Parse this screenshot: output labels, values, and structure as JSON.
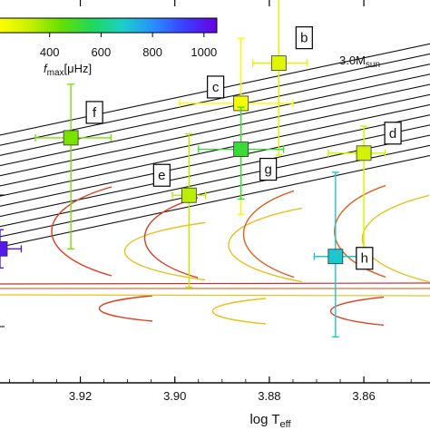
{
  "chart_data": {
    "type": "scatter",
    "title": "",
    "x_axis": {
      "label": "log T",
      "label_sub": "eff",
      "lim": [
        3.937,
        3.846
      ],
      "reversed": true,
      "ticks": [
        3.92,
        3.9,
        3.88,
        3.86
      ],
      "tick_labels": [
        "3.92",
        "3.90",
        "3.88",
        "3.86"
      ]
    },
    "colorbar": {
      "label": "f",
      "label_sub": "max",
      "unit": "[μHz]",
      "range": [
        200,
        1050
      ],
      "ticks": [
        400,
        600,
        800,
        1000
      ],
      "tick_labels": [
        "400",
        "600",
        "800",
        "1000"
      ],
      "colormap": [
        "#ffff00",
        "#c8f000",
        "#66e000",
        "#1fd85a",
        "#1ad0c8",
        "#2a8cff",
        "#3a3cff",
        "#6a00e0"
      ]
    },
    "track_annotation": {
      "text": "3.0M",
      "sub": "sun"
    },
    "points": [
      {
        "label": "b",
        "x": 3.878,
        "y": 0.835,
        "xerr": [
          0.0055,
          0.006
        ],
        "yerr": [
          0.24,
          0.17
        ],
        "fmax": 270
      },
      {
        "label": "c",
        "x": 3.886,
        "y": 0.73,
        "xerr": [
          0.013,
          0.011
        ],
        "yerr": [
          0.29,
          0.17
        ],
        "fmax": 220
      },
      {
        "label": "d",
        "x": 3.86,
        "y": 0.6,
        "xerr": [
          0.0075,
          0.0045
        ],
        "yerr": [
          0.26,
          0.07
        ],
        "fmax": 300
      },
      {
        "label": "e",
        "x": 3.897,
        "y": 0.49,
        "xerr": [
          0.0035,
          0.0035
        ],
        "yerr": [
          0.24,
          0.16
        ],
        "fmax": 340
      },
      {
        "label": "f",
        "x": 3.922,
        "y": 0.64,
        "xerr": [
          0.0075,
          0.0085
        ],
        "yerr": [
          0.29,
          0.14
        ],
        "fmax": 420
      },
      {
        "label": "g",
        "x": 3.886,
        "y": 0.61,
        "xerr": [
          0.009,
          0.009
        ],
        "yerr": [
          0.13,
          0.11
        ],
        "fmax": 520
      },
      {
        "label": "h",
        "x": 3.866,
        "y": 0.33,
        "xerr": [
          0.0045,
          0.0045
        ],
        "yerr": [
          0.21,
          0.22
        ],
        "fmax": 700
      },
      {
        "label": "",
        "x": 3.937,
        "y": 0.35,
        "xerr": [
          0.004,
          0.0045
        ],
        "yerr": [
          0.05,
          0.05
        ],
        "fmax": 1000
      }
    ]
  }
}
